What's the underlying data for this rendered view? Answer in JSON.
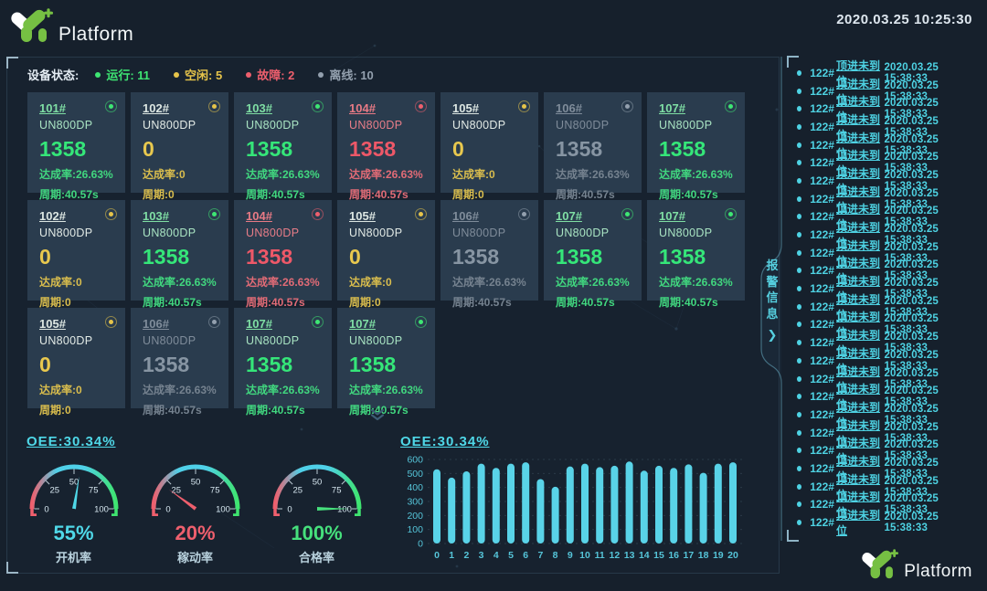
{
  "header": {
    "brand": "Platform",
    "datetime": "2020.03.25 10:25:30"
  },
  "status_bar": {
    "label": "设备状态:",
    "items": [
      {
        "label": "运行",
        "value": "11",
        "color": "#3ee673"
      },
      {
        "label": "空闲",
        "value": "5",
        "color": "#e6c44a"
      },
      {
        "label": "故障",
        "value": "2",
        "color": "#ee5f6d"
      },
      {
        "label": "离线",
        "value": "10",
        "color": "#93a0ae"
      }
    ]
  },
  "devices": {
    "rate_label": "达成率:",
    "cycle_label": "周期:",
    "cards": [
      {
        "id": "101#",
        "model": "UN800DP",
        "count": "1358",
        "rate": "26.63%",
        "cycle": "40.57s",
        "state": "running"
      },
      {
        "id": "102#",
        "model": "UN800DP",
        "count": "0",
        "rate": "0",
        "cycle": "0",
        "state": "idle"
      },
      {
        "id": "103#",
        "model": "UN800DP",
        "count": "1358",
        "rate": "26.63%",
        "cycle": "40.57s",
        "state": "running"
      },
      {
        "id": "104#",
        "model": "UN800DP",
        "count": "1358",
        "rate": "26.63%",
        "cycle": "40.57s",
        "state": "fault"
      },
      {
        "id": "105#",
        "model": "UN800DP",
        "count": "0",
        "rate": "0",
        "cycle": "0",
        "state": "idle"
      },
      {
        "id": "106#",
        "model": "UN800DP",
        "count": "1358",
        "rate": "26.63%",
        "cycle": "40.57s",
        "state": "offline"
      },
      {
        "id": "107#",
        "model": "UN800DP",
        "count": "1358",
        "rate": "26.63%",
        "cycle": "40.57s",
        "state": "running"
      },
      {
        "id": "102#",
        "model": "UN800DP",
        "count": "0",
        "rate": "0",
        "cycle": "0",
        "state": "idle"
      },
      {
        "id": "103#",
        "model": "UN800DP",
        "count": "1358",
        "rate": "26.63%",
        "cycle": "40.57s",
        "state": "running"
      },
      {
        "id": "104#",
        "model": "UN800DP",
        "count": "1358",
        "rate": "26.63%",
        "cycle": "40.57s",
        "state": "fault"
      },
      {
        "id": "105#",
        "model": "UN800DP",
        "count": "0",
        "rate": "0",
        "cycle": "0",
        "state": "idle"
      },
      {
        "id": "106#",
        "model": "UN800DP",
        "count": "1358",
        "rate": "26.63%",
        "cycle": "40.57s",
        "state": "offline"
      },
      {
        "id": "107#",
        "model": "UN800DP",
        "count": "1358",
        "rate": "26.63%",
        "cycle": "40.57s",
        "state": "running"
      },
      {
        "id": "107#",
        "model": "UN800DP",
        "count": "1358",
        "rate": "26.63%",
        "cycle": "40.57s",
        "state": "running"
      },
      {
        "id": "105#",
        "model": "UN800DP",
        "count": "0",
        "rate": "0",
        "cycle": "0",
        "state": "idle"
      },
      {
        "id": "106#",
        "model": "UN800DP",
        "count": "1358",
        "rate": "26.63%",
        "cycle": "40.57s",
        "state": "offline"
      },
      {
        "id": "107#",
        "model": "UN800DP",
        "count": "1358",
        "rate": "26.63%",
        "cycle": "40.57s",
        "state": "running"
      },
      {
        "id": "107#",
        "model": "UN800DP",
        "count": "1358",
        "rate": "26.63%",
        "cycle": "40.57s",
        "state": "running"
      }
    ]
  },
  "chart_data": [
    {
      "type": "gauge",
      "title": "OEE:30.34%",
      "range": [
        0,
        100
      ],
      "ticks": [
        0,
        25,
        50,
        75,
        100
      ],
      "gauges": [
        {
          "label": "开机率",
          "value": 55,
          "display": "55%",
          "color": "#4fd8e8"
        },
        {
          "label": "稼动率",
          "value": 20,
          "display": "20%",
          "color": "#ee5f6d"
        },
        {
          "label": "合格率",
          "value": 100,
          "display": "100%",
          "color": "#46e07c"
        }
      ],
      "arc_colors": [
        "#ef5f6d",
        "#4fd0e8",
        "#3fe470"
      ]
    },
    {
      "type": "bar",
      "title": "OEE:30.34%",
      "x": [
        0,
        1,
        2,
        3,
        4,
        5,
        6,
        7,
        8,
        9,
        10,
        11,
        12,
        13,
        14,
        15,
        16,
        17,
        18,
        19,
        20
      ],
      "values": [
        530,
        470,
        515,
        570,
        540,
        570,
        580,
        460,
        405,
        550,
        570,
        545,
        555,
        585,
        520,
        555,
        540,
        565,
        505,
        570,
        580
      ],
      "ylim": [
        0,
        600
      ],
      "yticks": [
        0,
        100,
        200,
        300,
        400,
        500,
        600
      ],
      "grid": true,
      "bar_color": "#59d3e8"
    }
  ],
  "alarm_panel": {
    "tab_title": "报警信息",
    "tab_arrow": "❯",
    "rows": [
      {
        "id": "122#",
        "message": "顶进未到位",
        "time": "2020.03.25 15:38:33"
      },
      {
        "id": "122#",
        "message": "顶进未到位",
        "time": "2020.03.25 15:38:33"
      },
      {
        "id": "122#",
        "message": "顶进未到位",
        "time": "2020.03.25 15:38:33"
      },
      {
        "id": "122#",
        "message": "顶进未到位",
        "time": "2020.03.25 15:38:33"
      },
      {
        "id": "122#",
        "message": "顶进未到位",
        "time": "2020.03.25 15:38:33"
      },
      {
        "id": "122#",
        "message": "顶进未到位",
        "time": "2020.03.25 15:38:33"
      },
      {
        "id": "122#",
        "message": "顶进未到位",
        "time": "2020.03.25 15:38:33"
      },
      {
        "id": "122#",
        "message": "顶进未到位",
        "time": "2020.03.25 15:38:33"
      },
      {
        "id": "122#",
        "message": "顶进未到位",
        "time": "2020.03.25 15:38:33"
      },
      {
        "id": "122#",
        "message": "顶进未到位",
        "time": "2020.03.25 15:38:33"
      },
      {
        "id": "122#",
        "message": "顶进未到位",
        "time": "2020.03.25 15:38:33"
      },
      {
        "id": "122#",
        "message": "顶进未到位",
        "time": "2020.03.25 15:38:33"
      },
      {
        "id": "122#",
        "message": "顶进未到位",
        "time": "2020.03.25 15:38:33"
      },
      {
        "id": "122#",
        "message": "顶进未到位",
        "time": "2020.03.25 15:38:33"
      },
      {
        "id": "122#",
        "message": "顶进未到位",
        "time": "2020.03.25 15:38:33"
      },
      {
        "id": "122#",
        "message": "顶进未到位",
        "time": "2020.03.25 15:38:33"
      },
      {
        "id": "122#",
        "message": "顶进未到位",
        "time": "2020.03.25 15:38:33"
      },
      {
        "id": "122#",
        "message": "顶进未到位",
        "time": "2020.03.25 15:38:33"
      },
      {
        "id": "122#",
        "message": "顶进未到位",
        "time": "2020.03.25 15:38:33"
      },
      {
        "id": "122#",
        "message": "顶进未到位",
        "time": "2020.03.25 15:38:33"
      },
      {
        "id": "122#",
        "message": "顶进未到位",
        "time": "2020.03.25 15:38:33"
      },
      {
        "id": "122#",
        "message": "顶进未到位",
        "time": "2020.03.25 15:38:33"
      },
      {
        "id": "122#",
        "message": "顶进未到位",
        "time": "2020.03.25 15:38:33"
      },
      {
        "id": "122#",
        "message": "顶进未到位",
        "time": "2020.03.25 15:38:33"
      },
      {
        "id": "122#",
        "message": "顶进未到位",
        "time": "2020.03.25 15:38:33"
      },
      {
        "id": "122#",
        "message": "顶进未到位",
        "time": "2020.03.25 15:38:33"
      }
    ]
  },
  "footer": {
    "brand": "Platform"
  }
}
